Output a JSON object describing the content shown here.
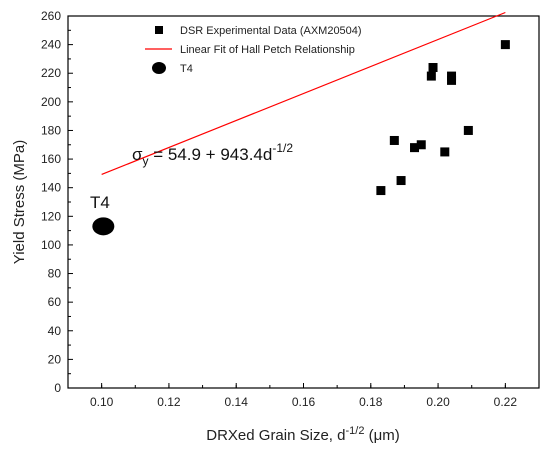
{
  "chart_data": {
    "type": "scatter",
    "xlabel": "DRXed Grain Size, d",
    "xlabel_sup": "-1/2",
    "xlabel_unit": " (μm)",
    "ylabel": "Yield Stress (MPa)",
    "xlim": [
      0.09,
      0.23
    ],
    "ylim": [
      0,
      260
    ],
    "x_ticks": [
      "0.10",
      "0.12",
      "0.14",
      "0.16",
      "0.18",
      "0.20",
      "0.22"
    ],
    "x_tick_values": [
      0.1,
      0.12,
      0.14,
      0.16,
      0.18,
      0.2,
      0.22
    ],
    "y_ticks": [
      "0",
      "20",
      "40",
      "60",
      "80",
      "100",
      "120",
      "140",
      "160",
      "180",
      "200",
      "220",
      "240",
      "260"
    ],
    "y_tick_values": [
      0,
      20,
      40,
      60,
      80,
      100,
      120,
      140,
      160,
      180,
      200,
      220,
      240,
      260
    ],
    "grid": false,
    "legend_position": "top-center",
    "series": [
      {
        "name": "DSR Experimental Data (AXM20504)",
        "marker": "square",
        "color": "#000000",
        "points": [
          {
            "x": 0.183,
            "y": 138
          },
          {
            "x": 0.187,
            "y": 173
          },
          {
            "x": 0.189,
            "y": 145
          },
          {
            "x": 0.193,
            "y": 168
          },
          {
            "x": 0.195,
            "y": 170
          },
          {
            "x": 0.198,
            "y": 218
          },
          {
            "x": 0.1985,
            "y": 224
          },
          {
            "x": 0.202,
            "y": 165
          },
          {
            "x": 0.204,
            "y": 218
          },
          {
            "x": 0.204,
            "y": 215
          },
          {
            "x": 0.209,
            "y": 180
          },
          {
            "x": 0.22,
            "y": 240
          }
        ]
      },
      {
        "name": "Linear Fit of Hall Petch Relationship",
        "marker": "line",
        "color": "#ff0000",
        "intercept": 54.9,
        "slope": 943.4,
        "x_range": [
          0.1,
          0.22
        ]
      },
      {
        "name": "T4",
        "marker": "circle",
        "color": "#000000",
        "points": [
          {
            "x": 0.1005,
            "y": 113
          }
        ]
      }
    ],
    "annotations": {
      "equation_sigma": "σ",
      "equation_sub": "y",
      "equation_body": " = 54.9 + 943.4d",
      "equation_sup": "-1/2",
      "point_label": "T4"
    }
  }
}
